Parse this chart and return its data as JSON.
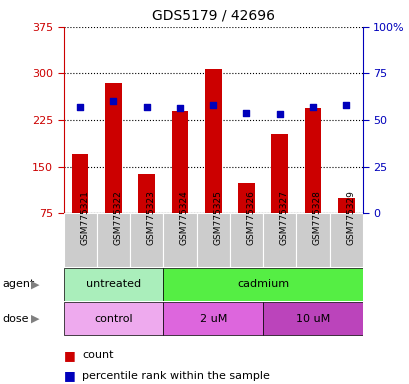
{
  "title": "GDS5179 / 42696",
  "samples": [
    "GSM775321",
    "GSM775322",
    "GSM775323",
    "GSM775324",
    "GSM775325",
    "GSM775326",
    "GSM775327",
    "GSM775328",
    "GSM775329"
  ],
  "counts": [
    170,
    285,
    138,
    240,
    307,
    123,
    202,
    245,
    100
  ],
  "percentile_ranks": [
    57,
    60,
    57,
    56.5,
    58,
    54,
    53,
    57,
    58
  ],
  "left_ylim": [
    75,
    375
  ],
  "left_yticks": [
    75,
    150,
    225,
    300,
    375
  ],
  "right_ylim": [
    0,
    100
  ],
  "right_yticks": [
    0,
    25,
    50,
    75,
    100
  ],
  "right_yticklabels": [
    "0",
    "25",
    "50",
    "75",
    "100%"
  ],
  "bar_color": "#cc0000",
  "dot_color": "#0000bb",
  "bar_width": 0.5,
  "agent_groups": [
    {
      "label": "untreated",
      "start": 0,
      "end": 3,
      "color": "#99ee88"
    },
    {
      "label": "cadmium",
      "start": 3,
      "end": 9,
      "color": "#55dd44"
    }
  ],
  "dose_groups": [
    {
      "label": "control",
      "start": 0,
      "end": 3,
      "color": "#eeaaee"
    },
    {
      "label": "2 uM",
      "start": 3,
      "end": 6,
      "color": "#dd77dd"
    },
    {
      "label": "10 uM",
      "start": 6,
      "end": 9,
      "color": "#cc44cc"
    }
  ],
  "agent_label": "agent",
  "dose_label": "dose",
  "left_axis_color": "#cc0000",
  "right_axis_color": "#0000bb",
  "grid_color": "#000000",
  "bg_color": "#ffffff",
  "xlabel_bg": "#cccccc",
  "tick_label_color_left": "#cc0000",
  "tick_label_color_right": "#0000bb"
}
